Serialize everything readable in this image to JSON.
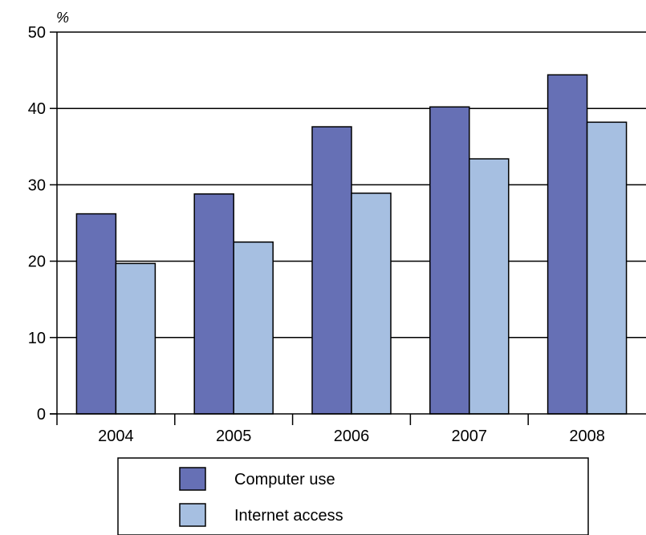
{
  "chart_data": {
    "type": "bar",
    "y_unit_label": "%",
    "categories": [
      "2004",
      "2005",
      "2006",
      "2007",
      "2008"
    ],
    "series": [
      {
        "name": "Computer use",
        "values": [
          26.2,
          28.8,
          37.6,
          40.2,
          44.4
        ],
        "color": "#6670b5"
      },
      {
        "name": "Internet access",
        "values": [
          19.7,
          22.5,
          28.9,
          33.4,
          38.2
        ],
        "color": "#a6bfe1"
      }
    ],
    "ylim": [
      0,
      50
    ],
    "yticks": [
      "0",
      "10",
      "20",
      "30",
      "40",
      "50"
    ],
    "grid": true,
    "legend_position": "bottom"
  }
}
